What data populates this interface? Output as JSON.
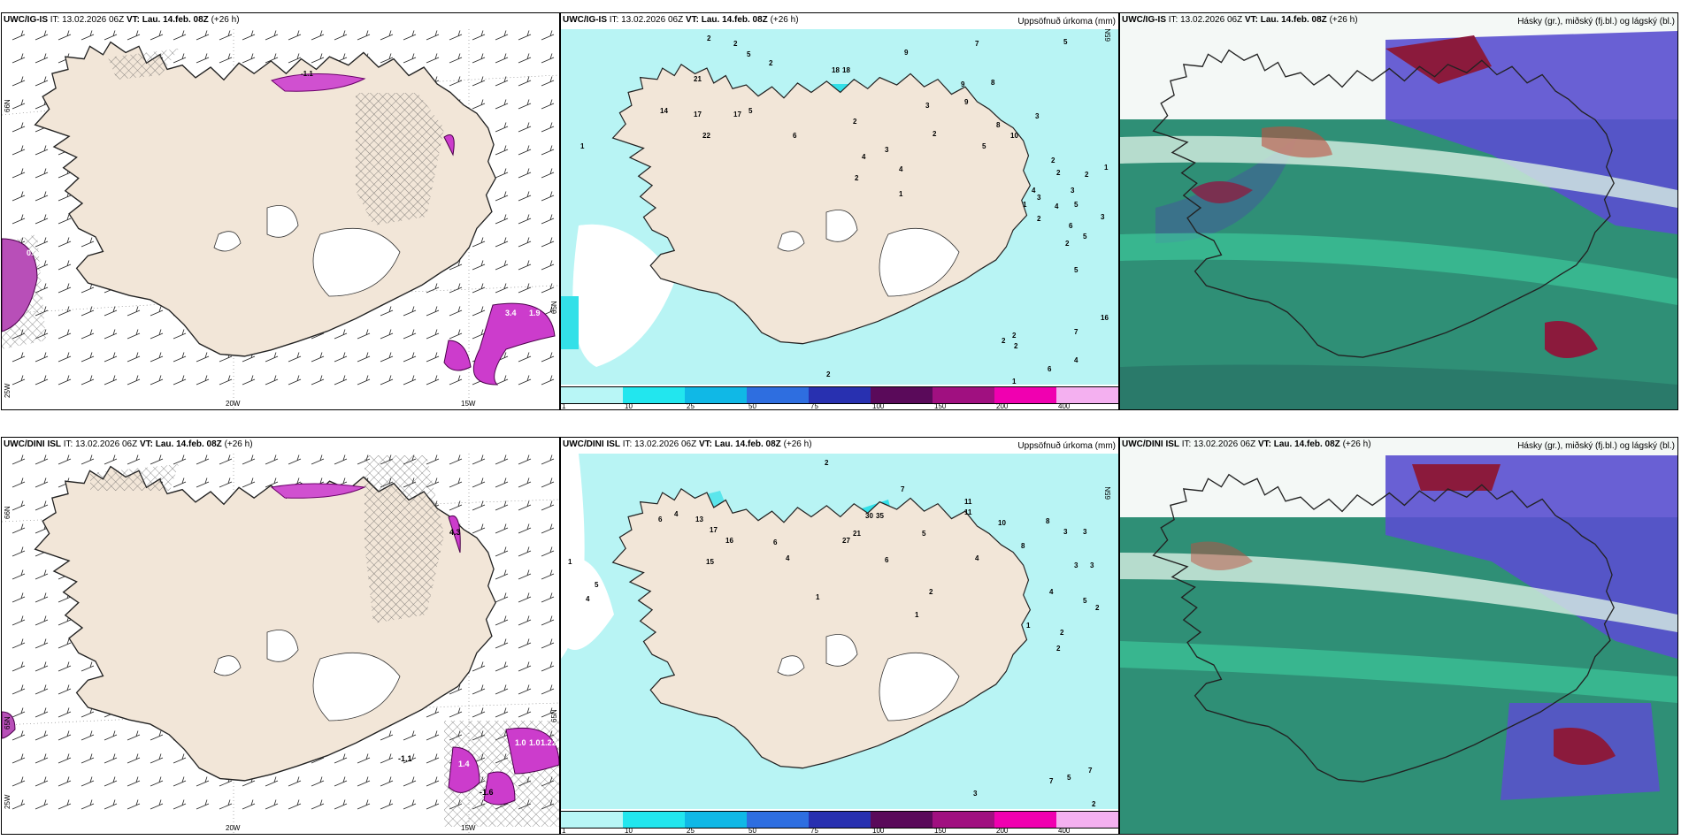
{
  "colors": {
    "land": "#f2e6d8",
    "precip_light": "#b8f4f4",
    "precip_mid": "#33e0e8",
    "cloud_high": "#8b1a3c",
    "cloud_mid": "#5a4fd0",
    "cloud_low": "#2f8f76",
    "hatch": "#555555",
    "magenta": "#d050d0"
  },
  "coord_labels": {
    "lat66": "66N",
    "lat65": "65N",
    "lon20": "20W",
    "lon15": "15W",
    "lon25": "25W"
  },
  "rows": [
    {
      "model": "UWC/IG-IS",
      "issue": "IT: 13.02.2026 06Z",
      "vt_label": "VT:",
      "valid": "Lau. 14.feb. 08Z",
      "lead": "(+26 h)",
      "wind_panel": {
        "values": [
          "0.3",
          "3.4",
          "1.9",
          "-1.1"
        ]
      },
      "precip_panel": {
        "title": "Uppsöfnuð úrkoma (mm)",
        "numbers": [
          "2",
          "2",
          "2",
          "5",
          "1",
          "21",
          "17",
          "18",
          "18",
          "9",
          "7",
          "5",
          "14",
          "17",
          "22",
          "5",
          "9",
          "3",
          "8",
          "9",
          "6",
          "3",
          "4",
          "3",
          "3",
          "2",
          "2",
          "8",
          "10",
          "2",
          "5",
          "4",
          "2",
          "2",
          "1",
          "2",
          "3",
          "1",
          "4",
          "2",
          "4",
          "5",
          "6",
          "2",
          "3",
          "5",
          "5",
          "1",
          "16",
          "7",
          "4",
          "2",
          "2",
          "2",
          "6",
          "1",
          "2"
        ]
      },
      "cloud_panel": {
        "title": "Hásky (gr.), miðský (fj.bl.) og lágský (bl.)"
      }
    },
    {
      "model": "UWC/DINI ISL",
      "issue": "IT: 13.02.2026 06Z",
      "vt_label": "VT:",
      "valid": "Lau. 14.feb. 08Z",
      "lead": "(+26 h)",
      "wind_panel": {
        "values": [
          "-1.1",
          "1.4",
          "-1.6",
          "1.0",
          "1.0",
          "1.2",
          "2.0",
          "4.3"
        ]
      },
      "precip_panel": {
        "title": "Uppsöfnuð úrkoma (mm)",
        "numbers": [
          "2",
          "6",
          "5",
          "4",
          "17",
          "16",
          "15",
          "13",
          "30",
          "35",
          "27",
          "21",
          "7",
          "11",
          "11",
          "10",
          "8",
          "6",
          "5",
          "4",
          "4",
          "6",
          "3",
          "3",
          "3",
          "3",
          "2",
          "2",
          "1",
          "1",
          "2",
          "1",
          "2",
          "4",
          "5",
          "7",
          "5",
          "7",
          "2",
          "3",
          "1",
          "4",
          "8"
        ]
      },
      "cloud_panel": {
        "title": "Hásky (gr.), miðský (fj.bl.) og lágský (bl.)"
      }
    }
  ],
  "legend": {
    "ticks": [
      "1",
      "10",
      "25",
      "50",
      "75",
      "100",
      "150",
      "200",
      "400"
    ],
    "colors": [
      "#b8f6f6",
      "#22e6ee",
      "#10b8e6",
      "#2e6ee0",
      "#2830b0",
      "#5a0a5a",
      "#a01080",
      "#f000b0",
      "#f4b0f0"
    ]
  }
}
